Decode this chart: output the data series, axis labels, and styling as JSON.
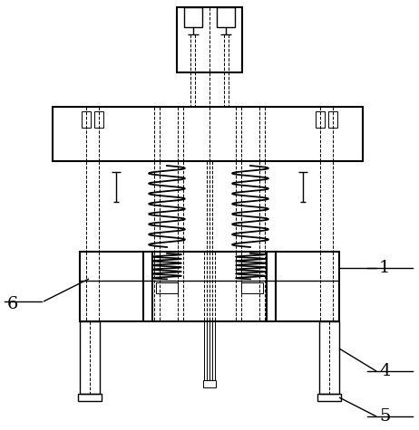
{
  "bg_color": "#ffffff",
  "line_color": "#000000",
  "label_color": "#000000",
  "lw_thick": 1.5,
  "lw_mid": 1.0,
  "lw_thin": 0.7,
  "font_size": 14,
  "figsize": [
    4.62,
    4.75
  ],
  "dpi": 100
}
